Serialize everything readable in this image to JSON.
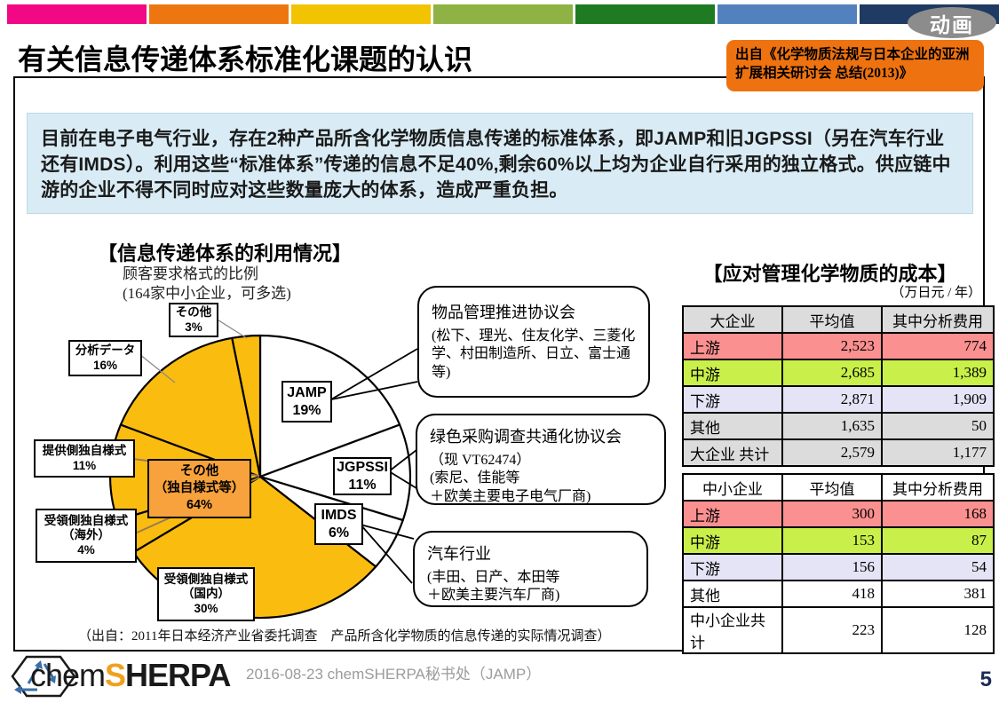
{
  "badge": "动画",
  "title": "有关信息传递体系标准化课题的认识",
  "source_box": "出自《化学物质法规与日本企业的亚洲扩展相关研讨会 总结(2013)》",
  "intro": "目前在电子电气行业，存在2种产品所含化学物质信息传递的标准体系，即JAMP和旧JGPSSI（另在汽车行业还有IMDS）。利用这些“标准体系”传递的信息不足40%,剩余60%以上均为企业自行采用的独立格式。供应链中游的企业不得不同时应对这些数量庞大的体系，造成严重负担。",
  "top_strip": {
    "colors": [
      "#f20884",
      "#ee7611",
      "#f2c300",
      "#8eb244",
      "#1e7b21",
      "#5381be",
      "#1f3a63"
    ]
  },
  "pie_section": {
    "title": "【信息传递体系的利用情况】",
    "subtitle": "顾客要求格式的比例\n(164家中小企业，可多选)",
    "center_label": "その他\n（独自様式等）\n64%",
    "labels": {
      "sonota": "その他\n3%",
      "bunseki": "分析データ\n16%",
      "teikyo": "提供側独自様式\n11%",
      "kaigai": "受領側独自様式\n（海外）\n4%",
      "kokunai": "受領側独自様式\n（国内）\n30%",
      "jamp": "JAMP\n19%",
      "jgpssi": "JGPSSI\n11%",
      "imds": "IMDS\n6%"
    },
    "source": "（出自：2011年日本经济产业省委托调查　产品所含化学物质的信息传递的实际情况调查）"
  },
  "chart_data": {
    "type": "pie",
    "title": "顾客要求格式的比例（164家中小企业，可多选）",
    "direction": "clockwise",
    "start_angle_deg": 0,
    "slices": [
      {
        "label": "JAMP",
        "value": 19,
        "color": "#ffffff"
      },
      {
        "label": "JGPSSI",
        "value": 11,
        "color": "#ffffff"
      },
      {
        "label": "IMDS",
        "value": 6,
        "color": "#ffffff"
      },
      {
        "label": "受領側独自様式（国内）",
        "value": 30,
        "color": "#fbbc10"
      },
      {
        "label": "受領側独自様式（海外）",
        "value": 4,
        "color": "#fbbc10"
      },
      {
        "label": "提供側独自様式",
        "value": 11,
        "color": "#fbbc10"
      },
      {
        "label": "分析データ",
        "value": 16,
        "color": "#fbbc10"
      },
      {
        "label": "その他",
        "value": 3,
        "color": "#fbbc10"
      }
    ],
    "annotation": "その他（独自様式等）64%"
  },
  "bubbles": [
    {
      "title": "物品管理推进协议会",
      "body": "(松下、理光、住友化学、三菱化学、村田制造所、日立、富士通等)"
    },
    {
      "title": "绿色采购调查共通化协议会",
      "body": "（现 VT62474）\n(索尼、佳能等\n＋欧美主要电子电气厂商)"
    },
    {
      "title": "汽车行业",
      "body": "(丰田、日产、本田等\n＋欧美主要汽车厂商)"
    }
  ],
  "cost_section": {
    "title": "【应对管理化学物质的成本】",
    "unit": "（万日元 / 年）",
    "tables": [
      {
        "headers": [
          "大企业",
          "平均值",
          "其中分析费用"
        ],
        "header_bg": "#dcdcdc",
        "rows": [
          {
            "label": "上游",
            "avg": "2,523",
            "analysis": "774",
            "bg": "#fb9090"
          },
          {
            "label": "中游",
            "avg": "2,685",
            "analysis": "1,389",
            "bg": "#c9f04a"
          },
          {
            "label": "下游",
            "avg": "2,871",
            "analysis": "1,909",
            "bg": "#e4e4f6"
          },
          {
            "label": "其他",
            "avg": "1,635",
            "analysis": "50",
            "bg": "#dcdcdc"
          },
          {
            "label": "大企业 共计",
            "avg": "2,579",
            "analysis": "1,177",
            "bg": "#dcdcdc"
          }
        ]
      },
      {
        "headers": [
          "中小企业",
          "平均值",
          "其中分析费用"
        ],
        "header_bg": "#ffffff",
        "rows": [
          {
            "label": "上游",
            "avg": "300",
            "analysis": "168",
            "bg": "#fb9090"
          },
          {
            "label": "中游",
            "avg": "153",
            "analysis": "87",
            "bg": "#c9f04a"
          },
          {
            "label": "下游",
            "avg": "156",
            "analysis": "54",
            "bg": "#e4e4f6"
          },
          {
            "label": "其他",
            "avg": "418",
            "analysis": "381",
            "bg": "#ffffff"
          },
          {
            "label": "中小企业共计",
            "avg": "223",
            "analysis": "128",
            "bg": "#ffffff"
          }
        ]
      }
    ]
  },
  "footer": {
    "logo_chem": "chem",
    "logo_s": "S",
    "logo_rest": "HERPA",
    "text": "2016-08-23  chemSHERPA秘书处（JAMP）",
    "page": "5"
  }
}
